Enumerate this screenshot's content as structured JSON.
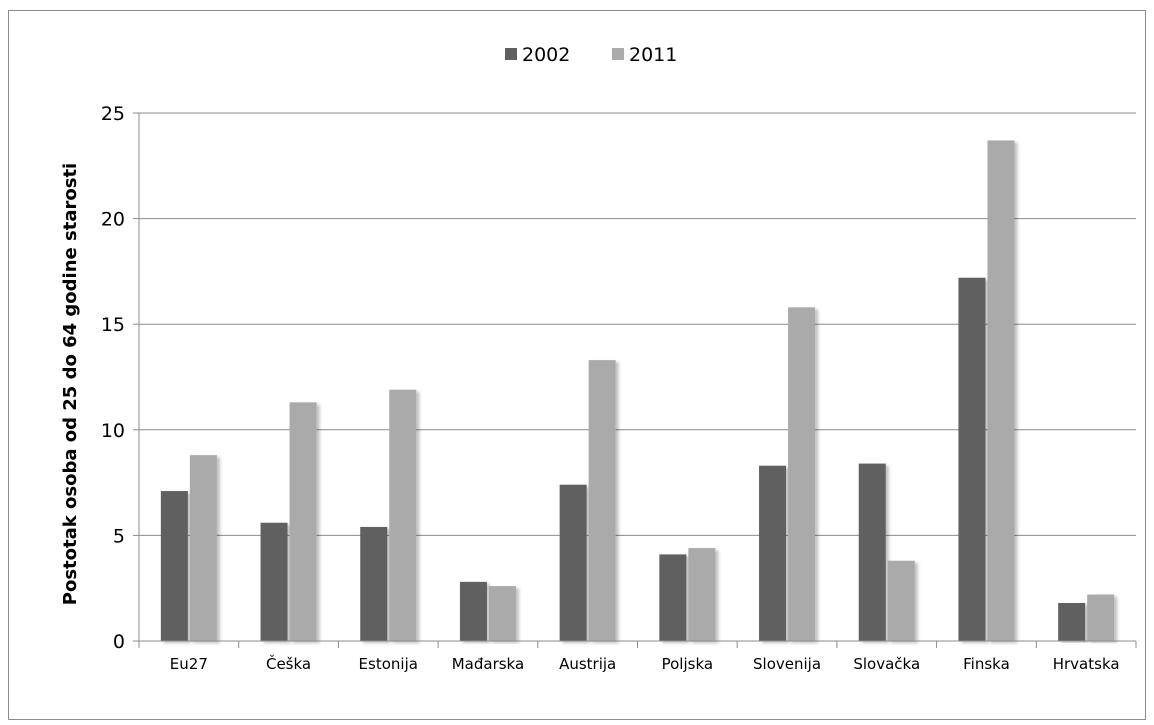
{
  "chart_data": {
    "type": "bar",
    "title": "",
    "xlabel": "",
    "ylabel": "Postotak osoba od 25 do 64 godine starosti",
    "ylim": [
      0,
      25
    ],
    "yticks": [
      0,
      5,
      10,
      15,
      20,
      25
    ],
    "grid": true,
    "legend": "top-center",
    "categories": [
      "Eu27",
      "Češka",
      "Estonija",
      "Mađarska",
      "Austrija",
      "Poljska",
      "Slovenija",
      "Slovačka",
      "Finska",
      "Hrvatska"
    ],
    "series": [
      {
        "name": "2002",
        "color": "#606060",
        "values": [
          7.1,
          5.6,
          5.4,
          2.8,
          7.4,
          4.1,
          8.3,
          8.4,
          17.2,
          1.8
        ]
      },
      {
        "name": "2011",
        "color": "#aaaaaa",
        "values": [
          8.8,
          11.3,
          11.9,
          2.6,
          13.3,
          4.4,
          15.8,
          3.8,
          23.7,
          2.2
        ]
      }
    ]
  }
}
